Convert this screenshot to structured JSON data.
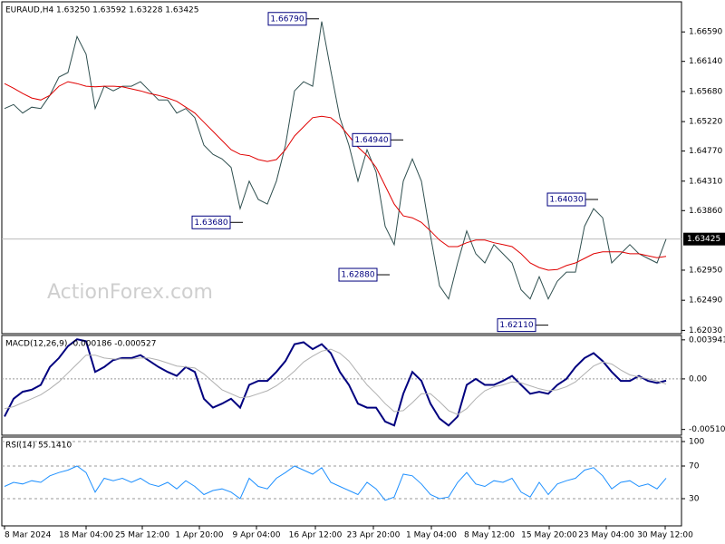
{
  "chart_data": [
    {
      "type": "line",
      "title": "EURAUD,H4  1.63250 1.63592 1.63228 1.63425",
      "watermark": "ActionForex.com",
      "xlim": [
        0,
        74
      ],
      "xticks": [
        {
          "value": 0,
          "label": "8 Mar 2024"
        },
        {
          "value": 9,
          "label": "18 Mar 04:00"
        },
        {
          "value": 15.2,
          "label": "25 Mar 12:00"
        },
        {
          "value": 21.5,
          "label": "1 Apr 20:00"
        },
        {
          "value": 27.8,
          "label": "9 Apr 04:00"
        },
        {
          "value": 34.3,
          "label": "16 Apr 12:00"
        },
        {
          "value": 40.7,
          "label": "23 Apr 20:00"
        },
        {
          "value": 47.1,
          "label": "1 May 04:00"
        },
        {
          "value": 53.5,
          "label": "8 May 12:00"
        },
        {
          "value": 60.1,
          "label": "15 May 20:00"
        },
        {
          "value": 66.4,
          "label": "23 May 04:00"
        },
        {
          "value": 72.9,
          "label": "30 May 12:00"
        }
      ],
      "ylim": [
        1.6198,
        1.6705
      ],
      "yticks": [
        {
          "value": 1.6659,
          "label": "1.66590"
        },
        {
          "value": 1.6614,
          "label": "1.66140"
        },
        {
          "value": 1.6568,
          "label": "1.65680"
        },
        {
          "value": 1.6522,
          "label": "1.65220"
        },
        {
          "value": 1.6477,
          "label": "1.64770"
        },
        {
          "value": 1.6431,
          "label": "1.64310"
        },
        {
          "value": 1.6386,
          "label": "1.63860"
        },
        {
          "value": 1.6295,
          "label": "1.62950"
        },
        {
          "value": 1.6249,
          "label": "1.62490"
        },
        {
          "value": 1.6203,
          "label": "1.62030"
        }
      ],
      "last_price": {
        "value": 1.63425,
        "label": "1.63425"
      },
      "annotations": [
        {
          "x": 34.7,
          "value": 1.6679,
          "label": "1.66790"
        },
        {
          "x": 44,
          "value": 1.6494,
          "label": "1.64940"
        },
        {
          "x": 26.3,
          "value": 1.6368,
          "label": "1.63680"
        },
        {
          "x": 42.5,
          "value": 1.6288,
          "label": "1.62880"
        },
        {
          "x": 65.5,
          "value": 1.6403,
          "label": "1.64030"
        },
        {
          "x": 60,
          "value": 1.6211,
          "label": "1.62110"
        }
      ],
      "series": [
        {
          "color": "#2f4f4f",
          "values": [
            1.6542,
            1.6548,
            1.6535,
            1.6544,
            1.6542,
            1.6562,
            1.659,
            1.6597,
            1.6652,
            1.6625,
            1.6542,
            1.6576,
            1.6569,
            1.6576,
            1.6576,
            1.6583,
            1.6569,
            1.6555,
            1.6555,
            1.6535,
            1.6542,
            1.6528,
            1.6486,
            1.6472,
            1.6465,
            1.6452,
            1.6389,
            1.6431,
            1.6403,
            1.6396,
            1.6431,
            1.6486,
            1.6569,
            1.6583,
            1.6576,
            1.6675,
            1.66,
            1.6528,
            1.6486,
            1.6431,
            1.6479,
            1.6445,
            1.6362,
            1.6334,
            1.6431,
            1.6465,
            1.6431,
            1.6348,
            1.6271,
            1.6251,
            1.6306,
            1.6355,
            1.632,
            1.6306,
            1.6334,
            1.632,
            1.6306,
            1.6265,
            1.6251,
            1.6285,
            1.6251,
            1.6278,
            1.6292,
            1.6292,
            1.6362,
            1.6389,
            1.6375,
            1.6306,
            1.632,
            1.6334,
            1.632,
            1.6313,
            1.6306,
            1.63425
          ]
        },
        {
          "color": "#e00000",
          "values": [
            1.658,
            1.6573,
            1.6565,
            1.6558,
            1.6555,
            1.6562,
            1.6576,
            1.6583,
            1.658,
            1.6576,
            1.6575,
            1.6576,
            1.6576,
            1.6575,
            1.6572,
            1.6569,
            1.6565,
            1.6562,
            1.6558,
            1.6553,
            1.6544,
            1.6535,
            1.6521,
            1.6507,
            1.6493,
            1.6479,
            1.6472,
            1.647,
            1.6464,
            1.6461,
            1.6464,
            1.6479,
            1.65,
            1.6514,
            1.6528,
            1.653,
            1.6528,
            1.6517,
            1.65,
            1.6483,
            1.647,
            1.6452,
            1.6424,
            1.6396,
            1.6378,
            1.6375,
            1.6368,
            1.6355,
            1.6341,
            1.6331,
            1.6331,
            1.6337,
            1.6341,
            1.6341,
            1.6337,
            1.6334,
            1.6331,
            1.632,
            1.6306,
            1.6299,
            1.6295,
            1.6296,
            1.6302,
            1.6306,
            1.6313,
            1.632,
            1.6323,
            1.6323,
            1.6323,
            1.632,
            1.632,
            1.6317,
            1.6314,
            1.6316
          ]
        }
      ]
    },
    {
      "type": "line",
      "title": "MACD(12,26,9) -0.000186 -0.000527",
      "xlim": [
        0,
        74
      ],
      "ylim": [
        -0.0055,
        0.0042
      ],
      "zero_line": true,
      "yticks": [
        0.003941,
        {
          "value": 0,
          "label": "0.00"
        },
        -0.005103
      ],
      "series": [
        {
          "color": "#00007f",
          "values": [
            -0.0038,
            -0.002,
            -0.0013,
            -0.0011,
            -0.0006,
            0.0012,
            0.0021,
            0.0033,
            0.004,
            0.0038,
            0.0007,
            0.0012,
            0.0019,
            0.0021,
            0.0021,
            0.0024,
            0.0018,
            0.0012,
            0.0007,
            0.0003,
            0.0012,
            0.0007,
            -0.002,
            -0.0029,
            -0.0025,
            -0.002,
            -0.0029,
            -0.0006,
            -0.0002,
            -0.0002,
            0.0007,
            0.0018,
            0.0035,
            0.0037,
            0.003,
            0.0035,
            0.0026,
            0.0007,
            -0.0006,
            -0.0025,
            -0.0029,
            -0.0029,
            -0.0043,
            -0.0047,
            -0.0015,
            0.0007,
            -0.0002,
            -0.0025,
            -0.004,
            -0.0047,
            -0.0038,
            -0.0006,
            0,
            -0.0006,
            -0.0006,
            -0.0002,
            0.0003,
            -0.0006,
            -0.0015,
            -0.0013,
            -0.0015,
            -0.0006,
            0,
            0.0012,
            0.0021,
            0.0026,
            0.0018,
            0.0007,
            -0.0002,
            -0.0002,
            0.0003,
            -0.0002,
            -0.0004,
            -0.000186
          ]
        },
        {
          "color": "#b0b0b0",
          "values": [
            -0.003,
            -0.0028,
            -0.0024,
            -0.002,
            -0.0016,
            -0.001,
            -0.0003,
            0.0006,
            0.0015,
            0.0024,
            0.0024,
            0.0021,
            0.002,
            0.002,
            0.002,
            0.0021,
            0.0021,
            0.0019,
            0.0016,
            0.0013,
            0.0012,
            0.0011,
            0.0005,
            -0.0003,
            -0.0011,
            -0.0015,
            -0.0019,
            -0.0018,
            -0.0015,
            -0.0012,
            -0.0007,
            0,
            0.0008,
            0.0017,
            0.0023,
            0.0028,
            0.003,
            0.0026,
            0.0018,
            0.0006,
            -0.0006,
            -0.0015,
            -0.0025,
            -0.0033,
            -0.0032,
            -0.0024,
            -0.0015,
            -0.0015,
            -0.0023,
            -0.0032,
            -0.0036,
            -0.003,
            -0.002,
            -0.0012,
            -0.0008,
            -0.0006,
            -0.0003,
            -0.0004,
            -0.0007,
            -0.001,
            -0.0012,
            -0.0011,
            -0.0008,
            -0.0003,
            0.0005,
            0.0013,
            0.0017,
            0.0015,
            0.0009,
            0.0004,
            0.0002,
            0,
            -0.0002,
            -0.000527
          ]
        }
      ]
    },
    {
      "type": "line",
      "title": "RSI(14) 55.1410",
      "xlim": [
        0,
        74
      ],
      "ylim": [
        0,
        100
      ],
      "grid": "dashed",
      "yticks": [
        100,
        70,
        30
      ],
      "series": [
        {
          "color": "#1e90ff",
          "values": [
            45,
            50,
            48,
            52,
            50,
            58,
            62,
            65,
            70,
            62,
            38,
            55,
            52,
            55,
            50,
            55,
            48,
            45,
            50,
            42,
            52,
            45,
            35,
            40,
            42,
            38,
            30,
            55,
            45,
            42,
            55,
            62,
            70,
            65,
            60,
            68,
            50,
            45,
            40,
            35,
            50,
            42,
            28,
            32,
            60,
            58,
            48,
            35,
            30,
            32,
            50,
            62,
            48,
            45,
            52,
            50,
            55,
            38,
            32,
            50,
            35,
            48,
            52,
            55,
            65,
            68,
            58,
            42,
            50,
            52,
            45,
            48,
            42,
            55.141
          ]
        }
      ]
    }
  ]
}
